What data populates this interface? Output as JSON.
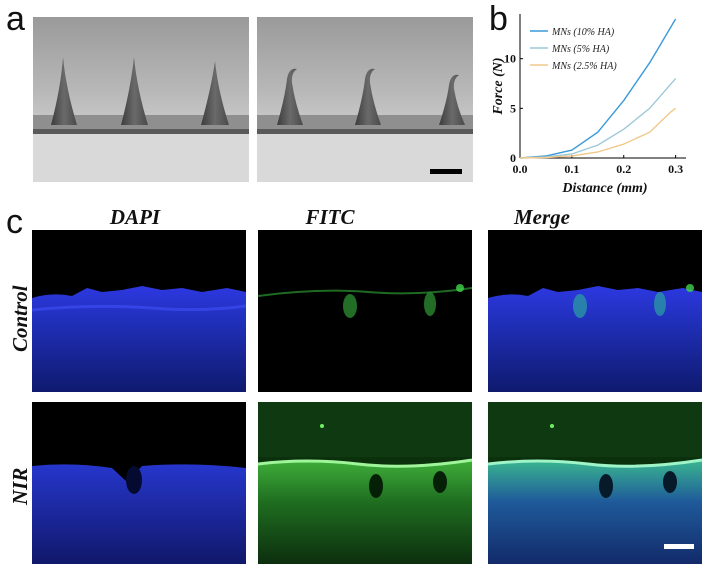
{
  "figure": {
    "panel_a_label": "a",
    "panel_b_label": "b",
    "panel_c_label": "c"
  },
  "panel_c": {
    "columns": [
      "DAPI",
      "FITC",
      "Merge"
    ],
    "rows": [
      "Control",
      "NIR"
    ]
  },
  "colors": {
    "dapi": "#1f2fd6",
    "fitc": "#3ed64a",
    "background": "#000000",
    "series_10": "#3a9ad9",
    "series_5": "#9cc9d6",
    "series_2_5": "#f1c98a"
  },
  "chart_data": {
    "type": "line",
    "xlabel": "Distance (mm)",
    "ylabel": "Force (N)",
    "xlim": [
      0.0,
      0.32
    ],
    "ylim": [
      0,
      14.5
    ],
    "xticks": [
      "0.0",
      "0.1",
      "0.2",
      "0.3"
    ],
    "yticks": [
      "0",
      "5",
      "10"
    ],
    "grid": false,
    "legend_position": "top-left",
    "series": [
      {
        "name": "MNs (10% HA)",
        "color": "#3a9ad9",
        "x": [
          0.0,
          0.05,
          0.1,
          0.15,
          0.2,
          0.25,
          0.3
        ],
        "y": [
          0.0,
          0.2,
          0.8,
          2.6,
          5.8,
          9.6,
          14.0
        ]
      },
      {
        "name": "MNs (5% HA)",
        "color": "#9cc9d6",
        "x": [
          0.0,
          0.05,
          0.1,
          0.15,
          0.2,
          0.25,
          0.3
        ],
        "y": [
          0.0,
          0.1,
          0.4,
          1.3,
          2.9,
          5.0,
          8.0
        ]
      },
      {
        "name": "MNs (2.5% HA)",
        "color": "#f1c98a",
        "x": [
          0.0,
          0.05,
          0.1,
          0.15,
          0.2,
          0.25,
          0.29,
          0.3
        ],
        "y": [
          0.0,
          0.05,
          0.2,
          0.6,
          1.4,
          2.6,
          4.6,
          5.0
        ]
      }
    ]
  }
}
